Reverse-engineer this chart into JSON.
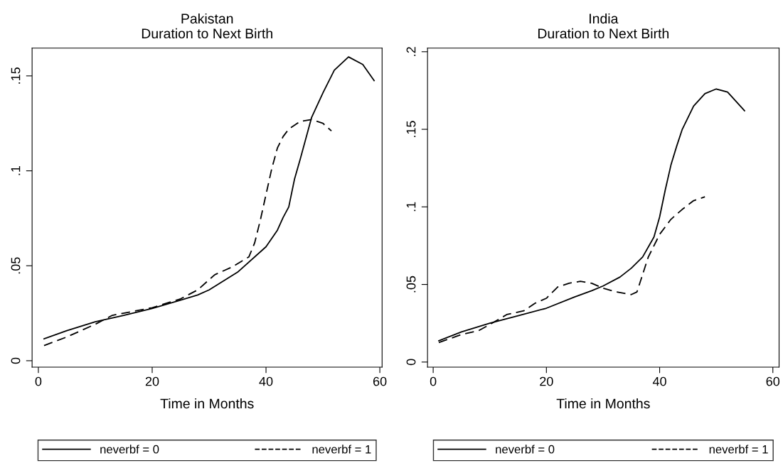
{
  "chart_data": [
    {
      "type": "line",
      "title": "Pakistan\nDuration to Next Birth",
      "xlabel": "Time in Months",
      "xlim": [
        -1.1,
        60.4
      ],
      "xticks": [
        0,
        20,
        40,
        60
      ],
      "ylim": [
        -0.0034,
        0.1646
      ],
      "yticks": [
        0,
        {
          "value": 0.05,
          "label": ".05"
        },
        {
          "value": 0.1,
          "label": ".1"
        },
        {
          "value": 0.15,
          "label": ".15"
        }
      ],
      "grid": false,
      "legend": "bottom",
      "series": [
        {
          "name": "neverbf = 0",
          "color": "#000000",
          "line_style": "solid",
          "x": [
            1,
            5,
            10,
            15,
            20,
            25,
            28,
            30,
            35,
            40,
            42,
            43,
            44,
            45,
            46,
            48,
            50,
            52,
            54.5,
            57,
            59
          ],
          "values": [
            0.0115,
            0.0158,
            0.0205,
            0.0239,
            0.0275,
            0.0319,
            0.0346,
            0.0373,
            0.0466,
            0.06,
            0.0687,
            0.0754,
            0.081,
            0.0955,
            0.106,
            0.128,
            0.141,
            0.153,
            0.16,
            0.156,
            0.1475
          ]
        },
        {
          "name": "neverbf = 1",
          "color": "#000000",
          "line_style": "dashed",
          "x": [
            1,
            5,
            10,
            13,
            20,
            25,
            28,
            31,
            34,
            37,
            38,
            39,
            40,
            41,
            42,
            43,
            44,
            46,
            48,
            50,
            51.5
          ],
          "values": [
            0.008,
            0.0125,
            0.0192,
            0.0239,
            0.0279,
            0.0326,
            0.0373,
            0.0453,
            0.0493,
            0.0547,
            0.062,
            0.074,
            0.0875,
            0.101,
            0.112,
            0.118,
            0.122,
            0.126,
            0.127,
            0.125,
            0.121
          ]
        }
      ]
    },
    {
      "type": "line",
      "title": "India\nDuration to Next Birth",
      "xlabel": "Time in Months",
      "xlim": [
        -1.0,
        61.1
      ],
      "xticks": [
        0,
        20,
        40,
        60
      ],
      "ylim": [
        -0.0033,
        0.2023
      ],
      "yticks": [
        0,
        {
          "value": 0.05,
          "label": ".05"
        },
        {
          "value": 0.1,
          "label": ".1"
        },
        {
          "value": 0.15,
          "label": ".15"
        },
        {
          "value": 0.2,
          "label": ".2"
        }
      ],
      "grid": false,
      "legend": "bottom",
      "series": [
        {
          "name": "neverbf = 0",
          "color": "#000000",
          "line_style": "solid",
          "x": [
            1,
            5,
            10,
            15,
            20,
            25,
            28,
            30,
            33,
            35,
            37,
            39,
            40,
            41,
            42,
            43,
            44,
            46,
            48,
            50,
            52,
            55
          ],
          "values": [
            0.0137,
            0.0194,
            0.025,
            0.0298,
            0.0347,
            0.042,
            0.046,
            0.049,
            0.0548,
            0.0605,
            0.0677,
            0.0806,
            0.0935,
            0.111,
            0.127,
            0.139,
            0.15,
            0.165,
            0.173,
            0.176,
            0.174,
            0.162
          ]
        },
        {
          "name": "neverbf = 1",
          "color": "#000000",
          "line_style": "dashed",
          "x": [
            1,
            5,
            8,
            10,
            13,
            16,
            18,
            20,
            22,
            24,
            26,
            28,
            30,
            32,
            35,
            36,
            37,
            38,
            40,
            42,
            44,
            46,
            48
          ],
          "values": [
            0.0126,
            0.0177,
            0.0202,
            0.0242,
            0.0306,
            0.033,
            0.0379,
            0.0411,
            0.0484,
            0.0508,
            0.052,
            0.0508,
            0.0476,
            0.0455,
            0.0435,
            0.0452,
            0.0565,
            0.0677,
            0.0823,
            0.092,
            0.0984,
            0.104,
            0.1065
          ]
        }
      ]
    }
  ]
}
